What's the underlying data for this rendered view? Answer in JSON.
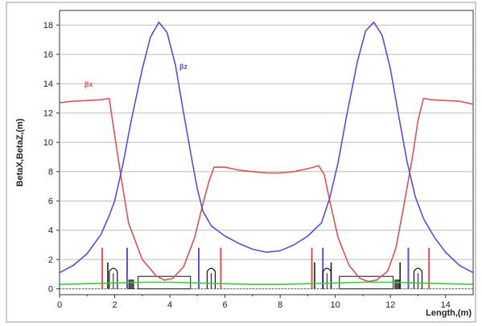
{
  "chart_data": {
    "type": "line",
    "xlabel": "Length,(m)",
    "ylabel": "BetaX,BetaZ,(m)",
    "xlim": [
      0,
      15
    ],
    "ylim": [
      -0.4,
      19
    ],
    "x_ticks": [
      "0",
      "2",
      "4",
      "6",
      "8",
      "10",
      "12",
      "14"
    ],
    "y_ticks": [
      "0",
      "2",
      "4",
      "6",
      "8",
      "10",
      "12",
      "14",
      "16",
      "18"
    ],
    "grid": "horizontal",
    "series": [
      {
        "name": "βx",
        "label": "βx",
        "color": "#d65555",
        "x": [
          0,
          0.5,
          1.0,
          1.5,
          1.8,
          2.0,
          2.2,
          2.5,
          3.0,
          3.5,
          3.8,
          4.1,
          4.5,
          4.9,
          5.2,
          5.4,
          5.6,
          6.0,
          6.5,
          7.0,
          7.5,
          8.0,
          8.5,
          9.0,
          9.4,
          9.6,
          9.8,
          10.1,
          10.5,
          10.9,
          11.2,
          11.5,
          11.9,
          12.2,
          12.5,
          12.8,
          13.0,
          13.2,
          13.5,
          14.0,
          14.5,
          15.0
        ],
        "y": [
          12.7,
          12.8,
          12.85,
          12.9,
          13.0,
          10.5,
          8.0,
          4.5,
          2.0,
          0.9,
          0.6,
          0.7,
          1.5,
          3.5,
          5.8,
          7.2,
          8.3,
          8.3,
          8.1,
          8.0,
          7.9,
          7.9,
          8.0,
          8.2,
          8.4,
          7.8,
          6.0,
          3.5,
          1.6,
          0.7,
          0.5,
          0.6,
          1.2,
          2.8,
          5.8,
          9.0,
          11.5,
          13.0,
          12.9,
          12.85,
          12.8,
          12.6
        ]
      },
      {
        "name": "βz",
        "label": "βz",
        "color": "#5a4fd0",
        "x": [
          0,
          0.5,
          1.0,
          1.5,
          1.8,
          2.0,
          2.3,
          2.6,
          3.0,
          3.3,
          3.6,
          3.9,
          4.2,
          4.5,
          4.8,
          5.0,
          5.2,
          5.5,
          6.0,
          6.5,
          7.0,
          7.5,
          8.0,
          8.5,
          9.0,
          9.5,
          9.8,
          10.1,
          10.4,
          10.8,
          11.1,
          11.4,
          11.7,
          12.0,
          12.3,
          12.6,
          12.9,
          13.2,
          13.6,
          14.0,
          14.5,
          15.0
        ],
        "y": [
          1.1,
          1.6,
          2.4,
          3.7,
          5.0,
          6.0,
          8.5,
          11.5,
          15.0,
          17.2,
          18.2,
          17.5,
          15.3,
          12.0,
          8.8,
          6.8,
          5.3,
          4.3,
          3.6,
          3.1,
          2.7,
          2.5,
          2.6,
          3.0,
          3.6,
          4.5,
          6.2,
          8.6,
          11.7,
          15.5,
          17.6,
          18.2,
          17.3,
          15.0,
          11.8,
          8.7,
          6.3,
          4.8,
          3.5,
          2.5,
          1.6,
          1.1
        ]
      },
      {
        "name": "",
        "color": "#3ec83e",
        "x": [
          0,
          1.0,
          2.0,
          3.0,
          4.0,
          5.0,
          6.0,
          7.0,
          8.0,
          9.0,
          10.0,
          11.0,
          12.0,
          13.0,
          14.0,
          15.0
        ],
        "y": [
          0.3,
          0.35,
          0.4,
          0.45,
          0.45,
          0.4,
          0.35,
          0.3,
          0.3,
          0.35,
          0.4,
          0.45,
          0.45,
          0.4,
          0.35,
          0.3
        ]
      }
    ],
    "elements": [
      {
        "type": "quad",
        "x": 1.55,
        "height": 2.8,
        "color": "#d65555"
      },
      {
        "type": "quad",
        "x": 2.45,
        "height": 2.8,
        "color": "#5a4fd0"
      },
      {
        "type": "quad",
        "x": 5.05,
        "height": 2.8,
        "color": "#5a4fd0"
      },
      {
        "type": "quad",
        "x": 5.85,
        "height": 2.8,
        "color": "#d65555"
      },
      {
        "type": "quad",
        "x": 9.15,
        "height": 2.8,
        "color": "#d65555"
      },
      {
        "type": "quad",
        "x": 9.55,
        "height": 2.8,
        "color": "#5a4fd0"
      },
      {
        "type": "quad",
        "x": 12.65,
        "height": 2.8,
        "color": "#5a4fd0"
      },
      {
        "type": "quad",
        "x": 13.4,
        "height": 2.8,
        "color": "#d65555"
      },
      {
        "type": "thin",
        "x": 1.75,
        "height": 1.8
      },
      {
        "type": "thin",
        "x": 9.25,
        "height": 1.8
      },
      {
        "type": "thin",
        "x": 9.85,
        "height": 1.8
      },
      {
        "type": "thin",
        "x": 12.35,
        "height": 1.8
      },
      {
        "type": "arch",
        "x": 1.95
      },
      {
        "type": "arch",
        "x": 5.5
      },
      {
        "type": "arch",
        "x": 9.7
      },
      {
        "type": "arch",
        "x": 13.0
      },
      {
        "type": "dipole",
        "x0": 2.85,
        "x1": 4.75,
        "height": 0.85
      },
      {
        "type": "dipole",
        "x0": 10.15,
        "x1": 12.1,
        "height": 0.85
      },
      {
        "type": "small",
        "x": 2.6
      },
      {
        "type": "small",
        "x": 12.25
      }
    ]
  }
}
